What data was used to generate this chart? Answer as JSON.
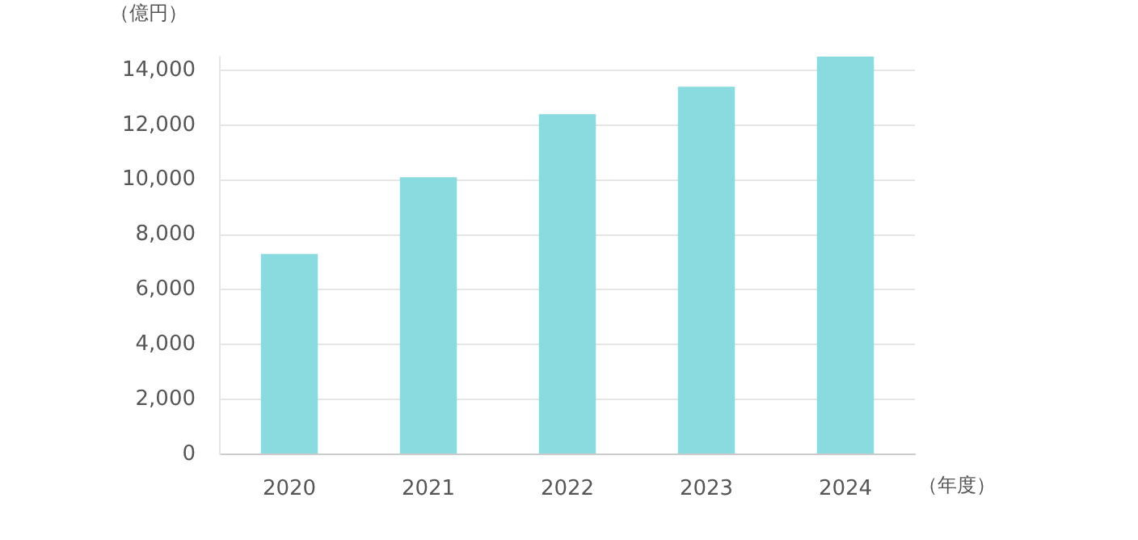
{
  "chart_data": {
    "type": "bar",
    "ylabel": "（億円）",
    "xlabel": "（年度）",
    "categories": [
      "2020",
      "2021",
      "2022",
      "2023",
      "2024"
    ],
    "values": [
      7300,
      10100,
      12400,
      13400,
      14500
    ],
    "color": "#89dbe0",
    "ylim": [
      0,
      14500
    ],
    "yticks": [
      0,
      {
        "value": 2000,
        "label": "2,000"
      },
      {
        "value": 4000,
        "label": "4,000"
      },
      {
        "value": 6000,
        "label": "6,000"
      },
      {
        "value": 8000,
        "label": "8,000"
      },
      {
        "value": 10000,
        "label": "10,000"
      },
      {
        "value": 12000,
        "label": "12,000"
      },
      {
        "value": 14000,
        "label": "14,000"
      }
    ],
    "grid": "y",
    "legend": false
  }
}
